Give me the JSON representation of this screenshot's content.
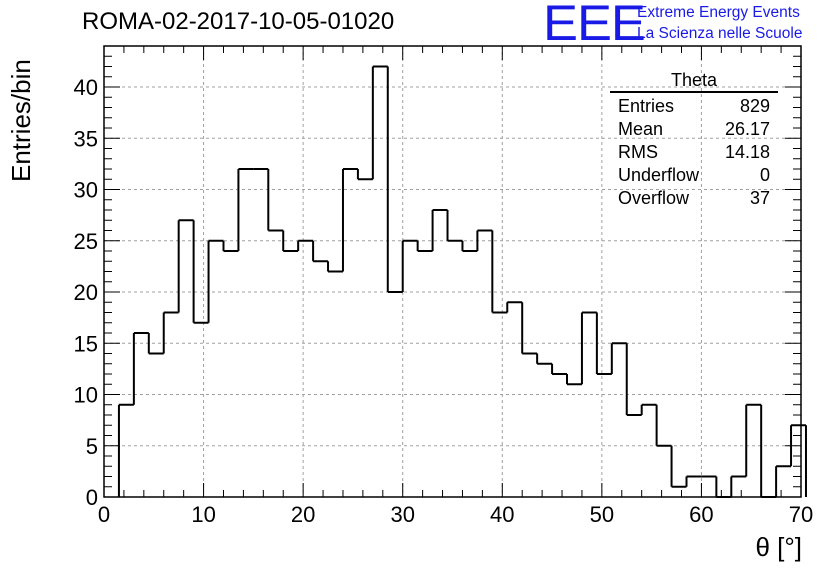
{
  "chart_data": {
    "type": "bar",
    "title": "ROMA-02-2017-10-05-01020",
    "xlabel": "θ [°]",
    "ylabel": "Entries/bin",
    "xlim": [
      0,
      70
    ],
    "ylim": [
      0,
      44
    ],
    "bin_width": 1.5,
    "bin_start": 1.5,
    "grid": true,
    "x_ticks": [
      0,
      10,
      20,
      30,
      40,
      50,
      60,
      70
    ],
    "y_ticks": [
      0,
      5,
      10,
      15,
      20,
      25,
      30,
      35,
      40
    ],
    "values": [
      9,
      16,
      14,
      18,
      27,
      17,
      25,
      24,
      32,
      32,
      26,
      24,
      25,
      23,
      22,
      32,
      31,
      42,
      20,
      25,
      24,
      28,
      25,
      24,
      26,
      18,
      19,
      14,
      13,
      12,
      11,
      18,
      12,
      15,
      8,
      9,
      5,
      1,
      2,
      2,
      0,
      2,
      9,
      0,
      3,
      7
    ],
    "stats_box": {
      "title": "Theta",
      "rows": [
        {
          "label": "Entries",
          "value": "829"
        },
        {
          "label": "Mean",
          "value": "26.17"
        },
        {
          "label": "RMS",
          "value": "14.18"
        },
        {
          "label": "Underflow",
          "value": "0"
        },
        {
          "label": "Overflow",
          "value": "37"
        }
      ]
    }
  },
  "logo": {
    "mark": "EEE",
    "line1": "Extreme Energy Events",
    "line2": "La Scienza nelle Scuole"
  },
  "colors": {
    "logo": "#1a1ae6",
    "histogram": "#000000",
    "grid": "#a0a0a0"
  }
}
